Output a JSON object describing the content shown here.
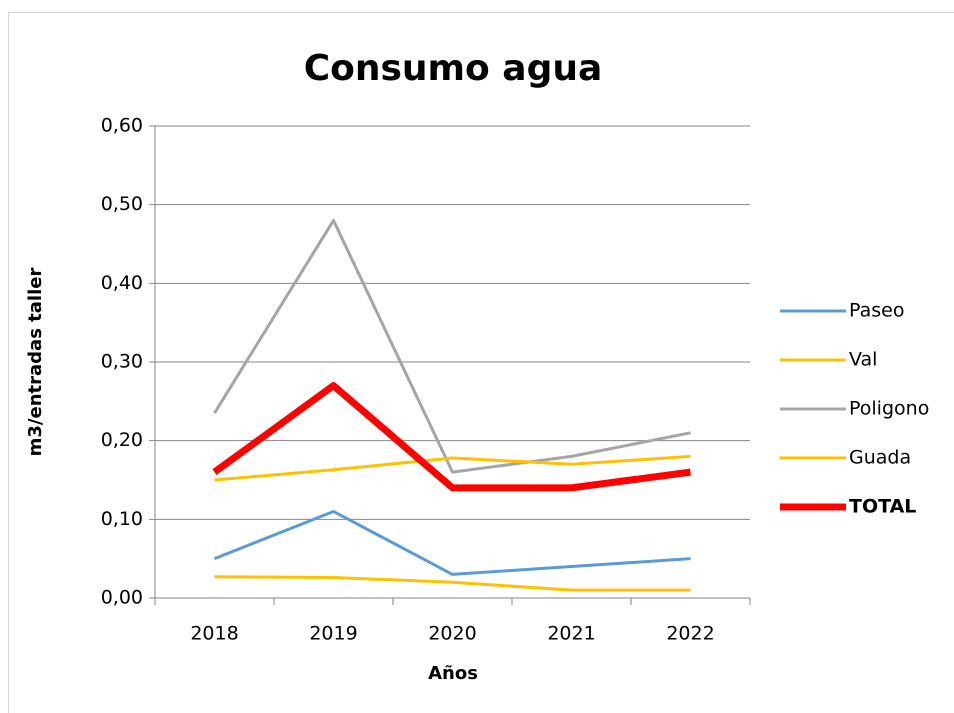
{
  "chart_data": {
    "type": "line",
    "title": "Consumo agua",
    "x_label": "Años",
    "y_label": "m3/entradas taller",
    "categories": [
      "2018",
      "2019",
      "2020",
      "2021",
      "2022"
    ],
    "series": [
      {
        "name": "Paseo",
        "color": "#5b9bd5",
        "line_width": 3,
        "values": [
          0.05,
          0.11,
          0.03,
          0.04,
          0.05
        ]
      },
      {
        "name": "Val",
        "color": "#ffc000",
        "line_width": 3,
        "values": [
          0.027,
          0.026,
          0.02,
          0.01,
          0.01
        ]
      },
      {
        "name": "Poligono",
        "color": "#a5a5a5",
        "line_width": 3,
        "values": [
          0.235,
          0.48,
          0.16,
          0.18,
          0.21
        ]
      },
      {
        "name": "Guada",
        "color": "#ffc000",
        "line_width": 3,
        "values": [
          0.15,
          0.163,
          0.178,
          0.17,
          0.18
        ]
      },
      {
        "name": "TOTAL",
        "color": "#ff0000",
        "line_width": 7,
        "bold": true,
        "values": [
          0.16,
          0.27,
          0.14,
          0.14,
          0.16
        ]
      }
    ],
    "ylim": [
      0,
      0.6
    ],
    "yticks": [
      {
        "value": 0,
        "label": "0,00"
      },
      {
        "value": 0.1,
        "label": "0,10"
      },
      {
        "value": 0.2,
        "label": "0,20"
      },
      {
        "value": 0.3,
        "label": "0,30"
      },
      {
        "value": 0.4,
        "label": "0,40"
      },
      {
        "value": 0.5,
        "label": "0,50"
      },
      {
        "value": 0.6,
        "label": "0,60"
      }
    ],
    "grid": true,
    "legend": "right"
  }
}
